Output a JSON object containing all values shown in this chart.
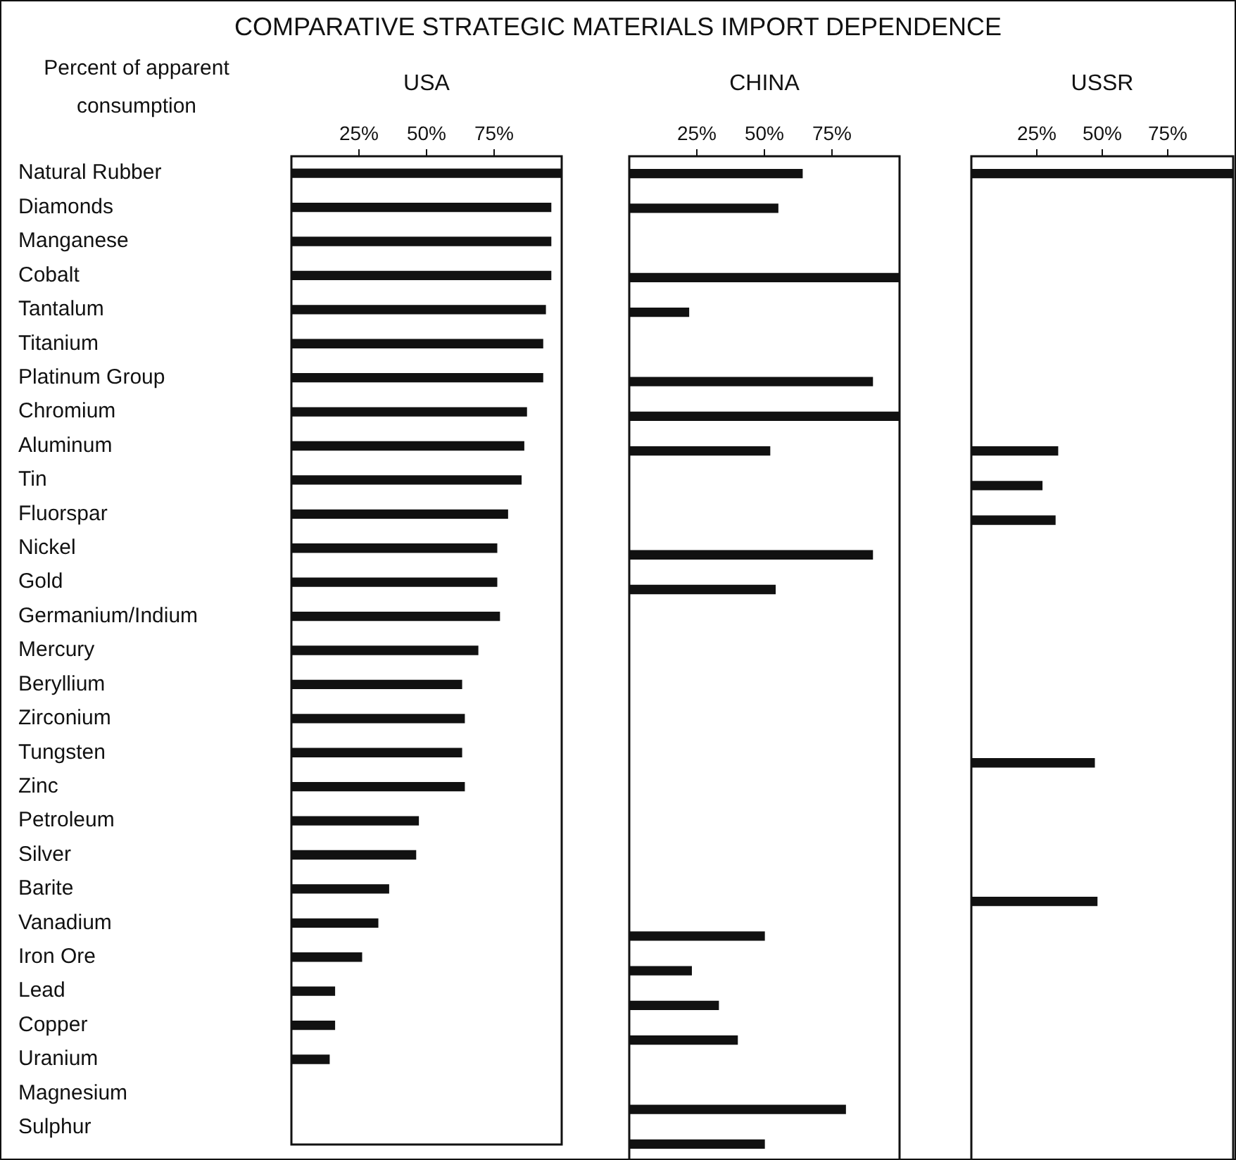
{
  "chart_data": [
    {
      "type": "bar",
      "orientation": "horizontal",
      "title": "COMPARATIVE STRATEGIC MATERIALS IMPORT DEPENDENCE",
      "ylabel": "Percent of apparent consumption",
      "xlabel": "USA",
      "categories": [
        "Natural Rubber",
        "Diamonds",
        "Manganese",
        "Cobalt",
        "Tantalum",
        "Titanium",
        "Platinum Group",
        "Chromium",
        "Aluminum",
        "Tin",
        "Fluorspar",
        "Nickel",
        "Gold",
        "Germanium/Indium",
        "Mercury",
        "Beryllium",
        "Zirconium",
        "Tungsten",
        "Zinc",
        "Petroleum",
        "Silver",
        "Barite",
        "Vanadium",
        "Iron Ore",
        "Lead",
        "Copper",
        "Uranium",
        "Magnesium",
        "Sulphur"
      ],
      "values": [
        100,
        96,
        96,
        96,
        94,
        93,
        93,
        87,
        86,
        85,
        80,
        76,
        76,
        77,
        69,
        63,
        64,
        63,
        64,
        47,
        46,
        36,
        32,
        26,
        16,
        16,
        14,
        null,
        null
      ],
      "color": "#111111",
      "xlim": [
        0,
        100
      ],
      "xticks": [
        {
          "value": 25,
          "label": "25%"
        },
        {
          "value": 50,
          "label": "50%"
        },
        {
          "value": 75,
          "label": "75%"
        }
      ]
    },
    {
      "type": "bar",
      "orientation": "horizontal",
      "xlabel": "CHINA",
      "tick_labels": "x",
      "categories": [
        null,
        null,
        null,
        null,
        null,
        null,
        null,
        null,
        null,
        null,
        null,
        null,
        null,
        null,
        null,
        null,
        null,
        null,
        null,
        null,
        null,
        null,
        null,
        null,
        null,
        null,
        null,
        null,
        null
      ],
      "values": [
        64,
        55,
        null,
        100,
        22,
        null,
        90,
        100,
        52,
        null,
        null,
        90,
        54,
        null,
        null,
        null,
        null,
        null,
        null,
        null,
        null,
        null,
        50,
        23,
        33,
        40,
        null,
        80,
        50
      ],
      "color": "#111111",
      "xlim": [
        0,
        100
      ],
      "xticks": [
        {
          "value": 25,
          "label": "25%"
        },
        {
          "value": 50,
          "label": "50%"
        },
        {
          "value": 75,
          "label": "75%"
        }
      ]
    },
    {
      "type": "bar",
      "orientation": "horizontal",
      "xlabel": "USSR",
      "tick_labels": "x",
      "categories": [
        null,
        null,
        null,
        null,
        null,
        null,
        null,
        null,
        null,
        null,
        null,
        null,
        null,
        null,
        null,
        null,
        null,
        null,
        null,
        null,
        null,
        null,
        null,
        null,
        null,
        null,
        null,
        null,
        null
      ],
      "values": [
        100,
        null,
        null,
        null,
        null,
        null,
        null,
        null,
        33,
        27,
        32,
        null,
        null,
        null,
        null,
        null,
        null,
        47,
        null,
        null,
        null,
        48,
        null,
        null,
        null,
        null,
        null,
        null,
        null
      ],
      "color": "#111111",
      "xlim": [
        0,
        100
      ],
      "xticks": [
        {
          "value": 25,
          "label": "25%"
        },
        {
          "value": 50,
          "label": "50%"
        },
        {
          "value": 75,
          "label": "75%"
        }
      ]
    }
  ]
}
